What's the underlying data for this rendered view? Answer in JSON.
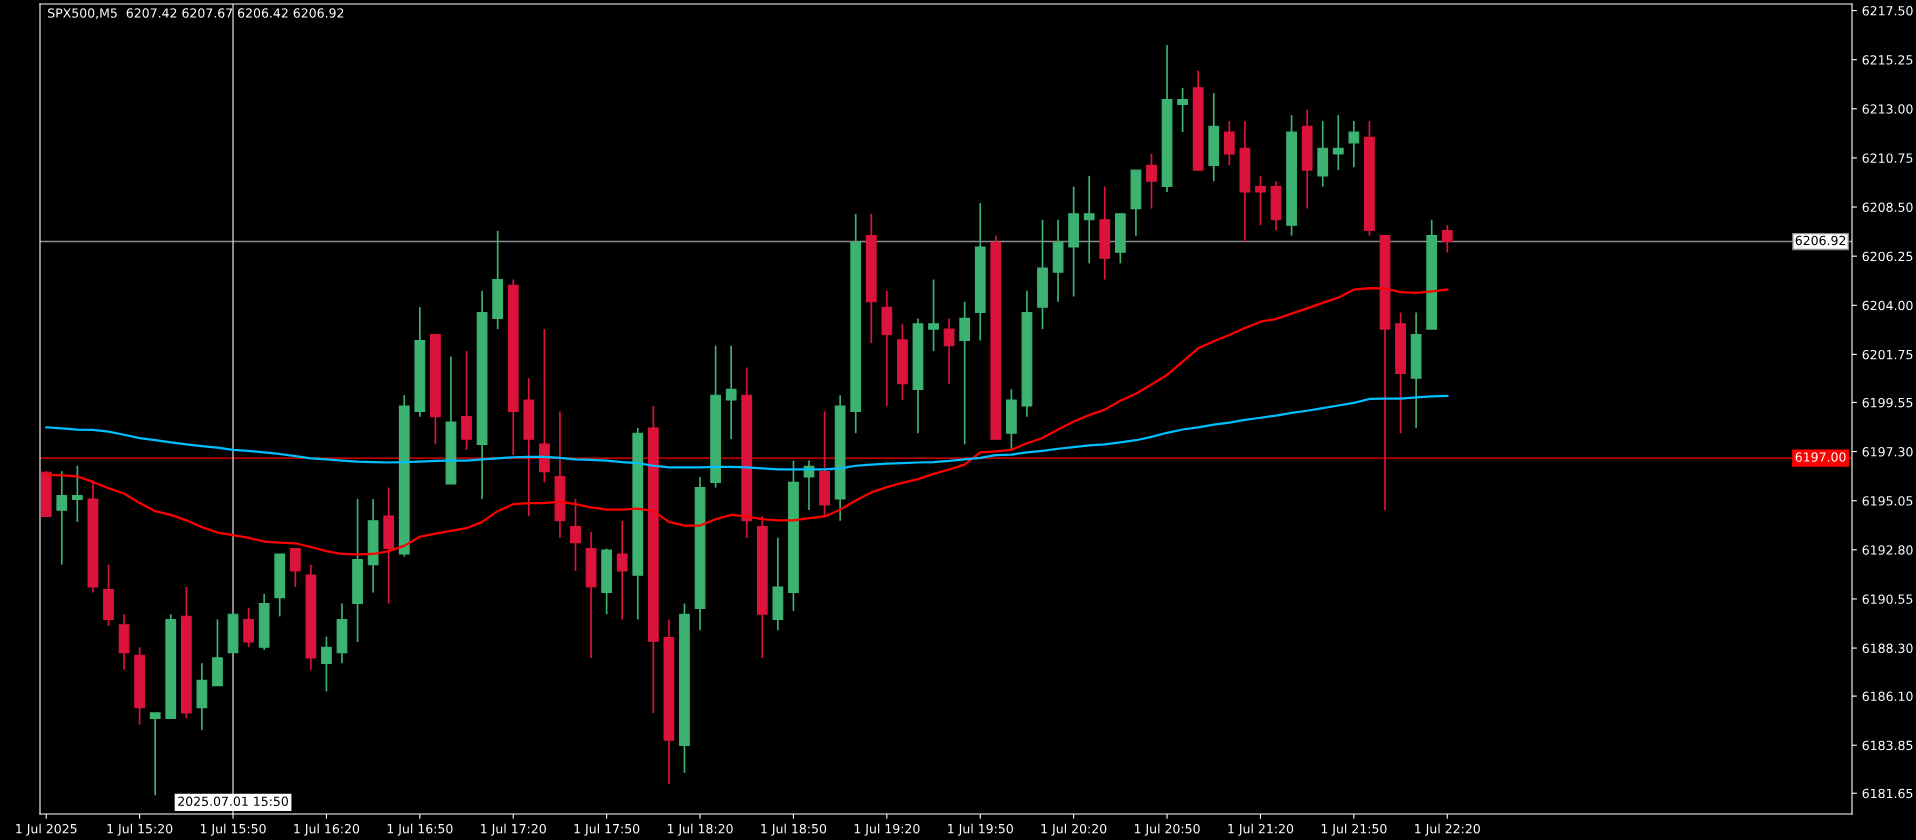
{
  "chart_data": {
    "type": "candlestick",
    "title": "SPX500,M5  6207.42 6207.67 6206.42 6206.92",
    "x": [
      "2025-07-01T14:50",
      "2025-07-01T14:55",
      "2025-07-01T15:00",
      "2025-07-01T15:05",
      "2025-07-01T15:10",
      "2025-07-01T15:15",
      "2025-07-01T15:20",
      "2025-07-01T15:25",
      "2025-07-01T15:30",
      "2025-07-01T15:35",
      "2025-07-01T15:40",
      "2025-07-01T15:45",
      "2025-07-01T15:50",
      "2025-07-01T15:55",
      "2025-07-01T16:00",
      "2025-07-01T16:05",
      "2025-07-01T16:10",
      "2025-07-01T16:15",
      "2025-07-01T16:20",
      "2025-07-01T16:25",
      "2025-07-01T16:30",
      "2025-07-01T16:35",
      "2025-07-01T16:40",
      "2025-07-01T16:45",
      "2025-07-01T16:50",
      "2025-07-01T16:55",
      "2025-07-01T17:00",
      "2025-07-01T17:05",
      "2025-07-01T17:10",
      "2025-07-01T17:15",
      "2025-07-01T17:20",
      "2025-07-01T17:25",
      "2025-07-01T17:30",
      "2025-07-01T17:35",
      "2025-07-01T17:40",
      "2025-07-01T17:45",
      "2025-07-01T17:50",
      "2025-07-01T17:55",
      "2025-07-01T18:00",
      "2025-07-01T18:05",
      "2025-07-01T18:10",
      "2025-07-01T18:15",
      "2025-07-01T18:20",
      "2025-07-01T18:25",
      "2025-07-01T18:30",
      "2025-07-01T18:35",
      "2025-07-01T18:40",
      "2025-07-01T18:45",
      "2025-07-01T18:50",
      "2025-07-01T18:55",
      "2025-07-01T19:00",
      "2025-07-01T19:05",
      "2025-07-01T19:10",
      "2025-07-01T19:15",
      "2025-07-01T19:20",
      "2025-07-01T19:25",
      "2025-07-01T19:30",
      "2025-07-01T19:35",
      "2025-07-01T19:40",
      "2025-07-01T19:45",
      "2025-07-01T19:50",
      "2025-07-01T19:55",
      "2025-07-01T20:00",
      "2025-07-01T20:05",
      "2025-07-01T20:10",
      "2025-07-01T20:15",
      "2025-07-01T20:20",
      "2025-07-01T20:25",
      "2025-07-01T20:30",
      "2025-07-01T20:35",
      "2025-07-01T20:40",
      "2025-07-01T20:45",
      "2025-07-01T20:50",
      "2025-07-01T20:55",
      "2025-07-01T21:00",
      "2025-07-01T21:05",
      "2025-07-01T21:10",
      "2025-07-01T21:15",
      "2025-07-01T21:20",
      "2025-07-01T21:25",
      "2025-07-01T21:30",
      "2025-07-01T21:35",
      "2025-07-01T21:40",
      "2025-07-01T21:45",
      "2025-07-01T21:50",
      "2025-07-01T21:55",
      "2025-07-01T22:00",
      "2025-07-01T22:05",
      "2025-07-01T22:10",
      "2025-07-01T22:15",
      "2025-07-01T22:20"
    ],
    "ohlc": [
      [
        6196.35,
        6196.4,
        6194.33,
        6194.33
      ],
      [
        6194.62,
        6196.4,
        6192.12,
        6195.28
      ],
      [
        6195.11,
        6196.65,
        6194.08,
        6195.28
      ],
      [
        6195.13,
        6195.96,
        6190.85,
        6191.1
      ],
      [
        6190.98,
        6192.12,
        6189.31,
        6189.61
      ],
      [
        6189.36,
        6189.85,
        6187.31,
        6188.09
      ],
      [
        6187.97,
        6188.34,
        6184.79,
        6185.57
      ],
      [
        6185.08,
        6185.33,
        6181.56,
        6185.33
      ],
      [
        6185.08,
        6189.85,
        6185.08,
        6189.61
      ],
      [
        6189.75,
        6191.1,
        6185.08,
        6185.33
      ],
      [
        6185.57,
        6187.6,
        6184.55,
        6186.82
      ],
      [
        6186.58,
        6189.61,
        6186.58,
        6187.85
      ],
      [
        6188.09,
        6189.85,
        6188.09,
        6189.85
      ],
      [
        6189.61,
        6190.15,
        6188.34,
        6188.58
      ],
      [
        6188.34,
        6190.78,
        6188.21,
        6190.34
      ],
      [
        6190.61,
        6192.61,
        6189.75,
        6192.61
      ],
      [
        6192.86,
        6192.86,
        6191.1,
        6191.83
      ],
      [
        6191.64,
        6192.12,
        6187.31,
        6187.85
      ],
      [
        6187.6,
        6188.83,
        6186.31,
        6188.34
      ],
      [
        6188.09,
        6190.34,
        6187.6,
        6189.61
      ],
      [
        6190.34,
        6195.13,
        6188.58,
        6192.35
      ],
      [
        6192.12,
        6195.13,
        6190.85,
        6194.13
      ],
      [
        6194.35,
        6195.65,
        6190.34,
        6192.86
      ],
      [
        6192.61,
        6199.88,
        6192.49,
        6199.39
      ],
      [
        6199.14,
        6203.91,
        6198.9,
        6202.39
      ],
      [
        6202.66,
        6202.66,
        6197.63,
        6198.9
      ],
      [
        6195.82,
        6201.66,
        6195.82,
        6198.65
      ],
      [
        6198.9,
        6201.9,
        6197.38,
        6197.87
      ],
      [
        6197.63,
        6204.67,
        6195.13,
        6203.67
      ],
      [
        6203.4,
        6207.41,
        6202.91,
        6205.18
      ],
      [
        6204.91,
        6205.18,
        6197.14,
        6199.14
      ],
      [
        6199.66,
        6200.66,
        6194.35,
        6197.87
      ],
      [
        6197.65,
        6202.91,
        6195.89,
        6196.38
      ],
      [
        6196.16,
        6199.14,
        6193.35,
        6194.13
      ],
      [
        6193.86,
        6195.13,
        6191.83,
        6193.13
      ],
      [
        6192.86,
        6193.62,
        6187.85,
        6191.1
      ],
      [
        6190.85,
        6192.86,
        6189.85,
        6192.79
      ],
      [
        6192.61,
        6194.13,
        6189.61,
        6191.83
      ],
      [
        6191.64,
        6198.38,
        6189.61,
        6198.14
      ],
      [
        6198.38,
        6199.39,
        6185.33,
        6188.61
      ],
      [
        6188.78,
        6189.61,
        6182.08,
        6184.08
      ],
      [
        6183.84,
        6190.34,
        6182.59,
        6189.85
      ],
      [
        6190.12,
        6196.14,
        6189.12,
        6195.65
      ],
      [
        6195.89,
        6202.15,
        6195.65,
        6199.88
      ],
      [
        6199.66,
        6202.15,
        6197.87,
        6200.15
      ],
      [
        6199.88,
        6201.15,
        6193.35,
        6194.13
      ],
      [
        6193.86,
        6194.35,
        6187.85,
        6189.85
      ],
      [
        6189.61,
        6193.35,
        6189.12,
        6191.1
      ],
      [
        6190.85,
        6196.89,
        6190.0,
        6195.89
      ],
      [
        6196.14,
        6196.89,
        6194.62,
        6196.62
      ],
      [
        6196.38,
        6199.14,
        6194.35,
        6194.86
      ],
      [
        6195.13,
        6199.88,
        6194.13,
        6199.39
      ],
      [
        6199.14,
        6208.19,
        6198.14,
        6206.89
      ],
      [
        6207.19,
        6208.19,
        6202.27,
        6204.16
      ],
      [
        6203.91,
        6204.67,
        6199.39,
        6202.66
      ],
      [
        6202.42,
        6203.15,
        6199.66,
        6200.41
      ],
      [
        6200.15,
        6203.4,
        6198.14,
        6203.15
      ],
      [
        6202.91,
        6205.18,
        6201.9,
        6203.15
      ],
      [
        6202.91,
        6203.4,
        6200.41,
        6202.15
      ],
      [
        6202.39,
        6204.16,
        6197.63,
        6203.4
      ],
      [
        6203.67,
        6208.68,
        6202.39,
        6206.67
      ],
      [
        6206.89,
        6207.19,
        6197.87,
        6197.87
      ],
      [
        6198.14,
        6200.15,
        6197.38,
        6199.66
      ],
      [
        6199.39,
        6204.67,
        6198.9,
        6203.67
      ],
      [
        6203.91,
        6207.92,
        6202.91,
        6205.7
      ],
      [
        6205.52,
        6207.92,
        6204.16,
        6206.89
      ],
      [
        6206.67,
        6209.44,
        6204.4,
        6208.19
      ],
      [
        6207.92,
        6209.93,
        6205.92,
        6208.19
      ],
      [
        6207.92,
        6209.44,
        6205.18,
        6206.16
      ],
      [
        6206.43,
        6208.19,
        6205.92,
        6208.19
      ],
      [
        6208.43,
        6210.19,
        6207.19,
        6210.19
      ],
      [
        6210.41,
        6210.93,
        6208.43,
        6209.68
      ],
      [
        6209.44,
        6215.92,
        6209.19,
        6213.42
      ],
      [
        6213.2,
        6213.96,
        6211.93,
        6213.42
      ],
      [
        6213.96,
        6214.74,
        6210.19,
        6210.19
      ],
      [
        6210.41,
        6213.72,
        6209.68,
        6212.2
      ],
      [
        6211.93,
        6212.44,
        6210.41,
        6210.93
      ],
      [
        6211.19,
        6212.44,
        6206.89,
        6209.19
      ],
      [
        6209.44,
        6209.93,
        6207.67,
        6209.19
      ],
      [
        6209.44,
        6209.68,
        6207.43,
        6207.92
      ],
      [
        6207.67,
        6212.71,
        6207.19,
        6211.93
      ],
      [
        6212.2,
        6212.96,
        6208.43,
        6210.19
      ],
      [
        6209.93,
        6212.44,
        6209.44,
        6211.19
      ],
      [
        6210.93,
        6212.71,
        6210.19,
        6211.19
      ],
      [
        6211.44,
        6212.44,
        6210.32,
        6211.93
      ],
      [
        6211.69,
        6212.44,
        6207.19,
        6207.43
      ],
      [
        6207.19,
        6207.19,
        6194.62,
        6202.91
      ],
      [
        6203.15,
        6203.67,
        6198.14,
        6200.88
      ],
      [
        6200.66,
        6203.67,
        6198.38,
        6202.66
      ],
      [
        6202.91,
        6207.92,
        6202.91,
        6207.19
      ],
      [
        6207.42,
        6207.67,
        6206.42,
        6206.92
      ]
    ],
    "colors": [
      "#dc143c",
      "#3cb371",
      "#3cb371",
      "#dc143c",
      "#dc143c",
      "#dc143c",
      "#dc143c",
      "#3cb371",
      "#3cb371",
      "#dc143c",
      "#3cb371",
      "#3cb371",
      "#3cb371",
      "#dc143c",
      "#3cb371",
      "#3cb371",
      "#dc143c",
      "#dc143c",
      "#3cb371",
      "#3cb371",
      "#3cb371",
      "#3cb371",
      "#dc143c",
      "#3cb371",
      "#3cb371",
      "#dc143c",
      "#3cb371",
      "#dc143c",
      "#3cb371",
      "#3cb371",
      "#dc143c",
      "#dc143c",
      "#dc143c",
      "#dc143c",
      "#dc143c",
      "#dc143c",
      "#3cb371",
      "#dc143c",
      "#3cb371",
      "#dc143c",
      "#dc143c",
      "#3cb371",
      "#3cb371",
      "#3cb371",
      "#3cb371",
      "#dc143c",
      "#dc143c",
      "#3cb371",
      "#3cb371",
      "#3cb371",
      "#dc143c",
      "#3cb371",
      "#3cb371",
      "#dc143c",
      "#dc143c",
      "#dc143c",
      "#3cb371",
      "#3cb371",
      "#dc143c",
      "#3cb371",
      "#3cb371",
      "#dc143c",
      "#3cb371",
      "#3cb371",
      "#3cb371",
      "#3cb371",
      "#3cb371",
      "#3cb371",
      "#dc143c",
      "#3cb371",
      "#3cb371",
      "#dc143c",
      "#3cb371",
      "#3cb371",
      "#dc143c",
      "#3cb371",
      "#dc143c",
      "#dc143c",
      "#dc143c",
      "#dc143c",
      "#3cb371",
      "#dc143c",
      "#3cb371",
      "#3cb371",
      "#3cb371",
      "#dc143c",
      "#dc143c",
      "#dc143c",
      "#3cb371",
      "#3cb371",
      "#dc143c"
    ],
    "series": [
      {
        "type": "line",
        "color": "#ff0000",
        "values": [
          6196.23,
          6196.21,
          6196.16,
          6195.91,
          6195.62,
          6195.38,
          6194.94,
          6194.57,
          6194.4,
          6194.15,
          6193.84,
          6193.59,
          6193.47,
          6193.35,
          6193.18,
          6193.13,
          6193.1,
          6192.93,
          6192.74,
          6192.61,
          6192.59,
          6192.61,
          6192.74,
          6192.98,
          6193.4,
          6193.54,
          6193.67,
          6193.79,
          6194.08,
          6194.57,
          6194.89,
          6194.94,
          6194.94,
          6195.01,
          6194.89,
          6194.74,
          6194.64,
          6194.64,
          6194.69,
          6194.57,
          6194.08,
          6193.91,
          6193.91,
          6194.2,
          6194.4,
          6194.33,
          6194.2,
          6194.15,
          6194.15,
          6194.25,
          6194.33,
          6194.64,
          6195.06,
          6195.43,
          6195.67,
          6195.87,
          6196.04,
          6196.28,
          6196.48,
          6196.7,
          6197.26,
          6197.31,
          6197.38,
          6197.68,
          6197.92,
          6198.31,
          6198.68,
          6198.97,
          6199.22,
          6199.63,
          6199.95,
          6200.37,
          6200.81,
          6201.42,
          6202.03,
          6202.35,
          6202.64,
          6202.96,
          6203.25,
          6203.37,
          6203.62,
          6203.86,
          6204.11,
          6204.35,
          6204.72,
          6204.79,
          6204.77,
          6204.6,
          6204.57,
          6204.64,
          6204.72
        ]
      },
      {
        "type": "line",
        "color": "#00bfff",
        "values": [
          6198.41,
          6198.36,
          6198.31,
          6198.29,
          6198.21,
          6198.07,
          6197.92,
          6197.82,
          6197.72,
          6197.63,
          6197.55,
          6197.48,
          6197.38,
          6197.33,
          6197.26,
          6197.19,
          6197.09,
          6196.99,
          6196.94,
          6196.89,
          6196.84,
          6196.82,
          6196.8,
          6196.82,
          6196.84,
          6196.87,
          6196.89,
          6196.89,
          6196.94,
          6196.99,
          6197.04,
          6197.06,
          6197.06,
          6197.01,
          6196.94,
          6196.92,
          6196.89,
          6196.82,
          6196.77,
          6196.65,
          6196.58,
          6196.58,
          6196.58,
          6196.6,
          6196.6,
          6196.58,
          6196.53,
          6196.48,
          6196.48,
          6196.48,
          6196.48,
          6196.53,
          6196.65,
          6196.7,
          6196.75,
          6196.77,
          6196.8,
          6196.82,
          6196.87,
          6196.94,
          6197.01,
          6197.14,
          6197.16,
          6197.26,
          6197.33,
          6197.43,
          6197.5,
          6197.58,
          6197.63,
          6197.72,
          6197.82,
          6197.97,
          6198.16,
          6198.31,
          6198.41,
          6198.53,
          6198.63,
          6198.75,
          6198.85,
          6198.95,
          6199.07,
          6199.17,
          6199.29,
          6199.41,
          6199.53,
          6199.71,
          6199.73,
          6199.73,
          6199.78,
          6199.83,
          6199.85
        ]
      }
    ],
    "ylim": [
      6180.7,
      6217.8
    ],
    "yticks": [
      {
        "value": 6181.65,
        "label": "6181.65"
      },
      {
        "value": 6183.85,
        "label": "6183.85"
      },
      {
        "value": 6186.1,
        "label": "6186.10"
      },
      {
        "value": 6188.3,
        "label": "6188.30"
      },
      {
        "value": 6190.55,
        "label": "6190.55"
      },
      {
        "value": 6192.8,
        "label": "6192.80"
      },
      {
        "value": 6195.05,
        "label": "6195.05"
      },
      {
        "value": 6197.3,
        "label": "6197.30"
      },
      {
        "value": 6199.55,
        "label": "6199.55"
      },
      {
        "value": 6201.75,
        "label": "6201.75"
      },
      {
        "value": 6204,
        "label": "6204.00"
      },
      {
        "value": 6206.25,
        "label": "6206.25"
      },
      {
        "value": 6208.5,
        "label": "6208.50"
      },
      {
        "value": 6210.75,
        "label": "6210.75"
      },
      {
        "value": 6213,
        "label": "6213.00"
      },
      {
        "value": 6215.25,
        "label": "6215.25"
      },
      {
        "value": 6217.5,
        "label": "6217.50"
      }
    ],
    "xlim": [
      "2025-07-01T14:48",
      "2025-07-02T00:30"
    ],
    "xticks": [
      {
        "value": "2025-07-01T14:50",
        "label": "1 Jul 2025"
      },
      {
        "value": "2025-07-01T15:20",
        "label": "1 Jul 15:20"
      },
      {
        "value": "2025-07-01T15:50",
        "label": "1 Jul 15:50"
      },
      {
        "value": "2025-07-01T16:20",
        "label": "1 Jul 16:20"
      },
      {
        "value": "2025-07-01T16:50",
        "label": "1 Jul 16:50"
      },
      {
        "value": "2025-07-01T17:20",
        "label": "1 Jul 17:20"
      },
      {
        "value": "2025-07-01T17:50",
        "label": "1 Jul 17:50"
      },
      {
        "value": "2025-07-01T18:20",
        "label": "1 Jul 18:20"
      },
      {
        "value": "2025-07-01T18:50",
        "label": "1 Jul 18:50"
      },
      {
        "value": "2025-07-01T19:20",
        "label": "1 Jul 19:20"
      },
      {
        "value": "2025-07-01T19:50",
        "label": "1 Jul 19:50"
      },
      {
        "value": "2025-07-01T20:20",
        "label": "1 Jul 20:20"
      },
      {
        "value": "2025-07-01T20:50",
        "label": "1 Jul 20:50"
      },
      {
        "value": "2025-07-01T21:20",
        "label": "1 Jul 21:20"
      },
      {
        "value": "2025-07-01T21:50",
        "label": "1 Jul 21:50"
      },
      {
        "value": "2025-07-01T22:20",
        "label": "1 Jul 22:20"
      }
    ],
    "ref_lines": [
      {
        "axis": "y",
        "value": 6206.92,
        "label": "6206.92",
        "color": "#8c8c8c"
      },
      {
        "axis": "y",
        "value": 6197.0,
        "label": "6197.00",
        "color": "#ff0000"
      },
      {
        "axis": "x",
        "value": "2025-07-01T15:50",
        "label": "2025.07.01 15:50",
        "color": "#c8c8c8"
      }
    ],
    "grid": false
  }
}
